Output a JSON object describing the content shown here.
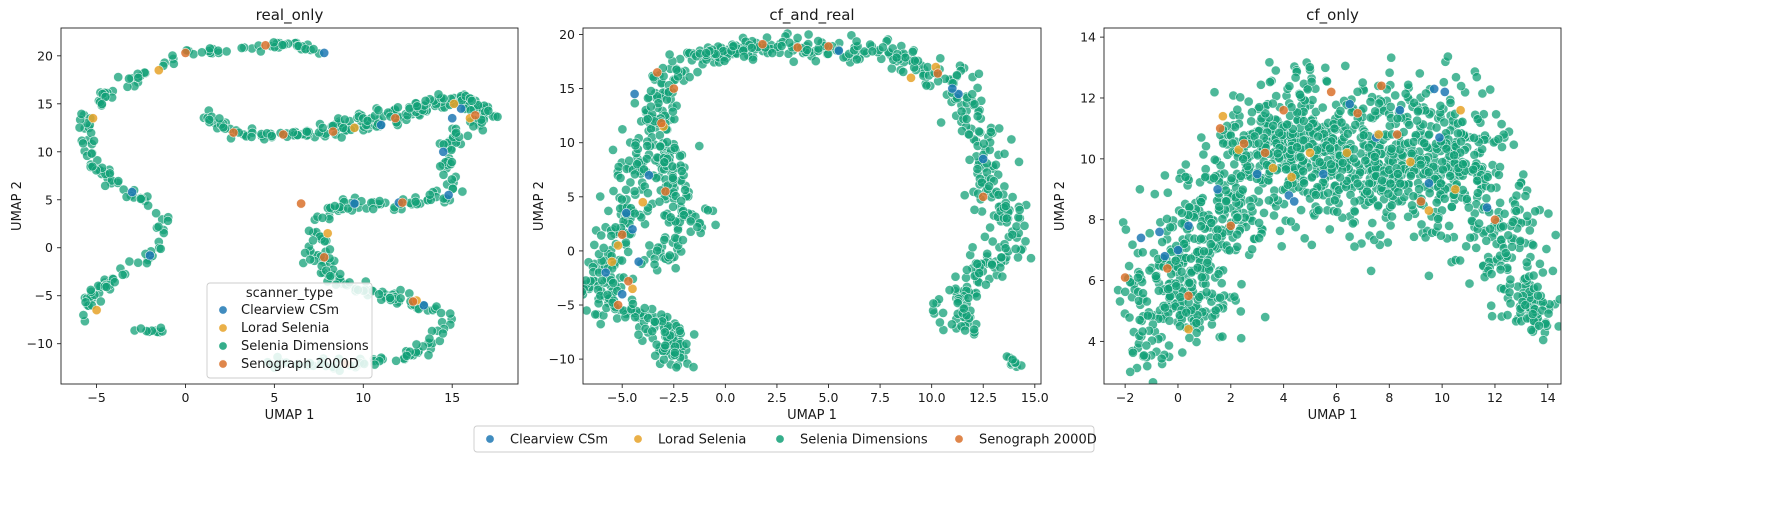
{
  "colors": {
    "Clearview CSm": "#1f78b4",
    "Lorad Selenia": "#e6a228",
    "Selenia Dimensions": "#12a077",
    "Senograph 2000D": "#d9712b"
  },
  "bottom_legend": {
    "entries": [
      "Clearview CSm",
      "Lorad Selenia",
      "Selenia Dimensions",
      "Senograph 2000D"
    ]
  },
  "chart_data": [
    {
      "type": "scatter",
      "title": "real_only",
      "xlabel": "UMAP 1",
      "ylabel": "UMAP 2",
      "xlim": [
        -7,
        18.7
      ],
      "ylim": [
        -14.2,
        22.9
      ],
      "xticks": [
        -5,
        0,
        5,
        10,
        15
      ],
      "yticks": [
        -10,
        -5,
        0,
        5,
        10,
        15,
        20
      ],
      "legend": {
        "title": "scanner_type",
        "placement": "lower-center",
        "entries": [
          "Clearview CSm",
          "Lorad Selenia",
          "Selenia Dimensions",
          "Senograph 2000D"
        ]
      },
      "curves": [
        {
          "points": [
            [
              4.9,
              21.1
            ],
            [
              3,
              20.8
            ],
            [
              1,
              20.4
            ],
            [
              -0.5,
              19.8
            ],
            [
              -1.5,
              18.8
            ],
            [
              -3,
              17.5
            ],
            [
              -4.5,
              15.8
            ],
            [
              -5.6,
              13.5
            ],
            [
              -5.6,
              10.5
            ],
            [
              -5,
              8
            ],
            [
              -3.5,
              6.2
            ],
            [
              -2,
              4.5
            ],
            [
              -1.2,
              2.5
            ],
            [
              -1.4,
              0.3
            ],
            [
              -2.5,
              -1.5
            ],
            [
              -4,
              -3.3
            ],
            [
              -5.2,
              -5
            ],
            [
              -5.5,
              -6.5
            ],
            [
              -5,
              -7.8
            ]
          ],
          "spread": 0.25,
          "count": 150
        },
        {
          "points": [
            [
              4.9,
              21.1
            ],
            [
              6,
              21.1
            ],
            [
              7,
              20.9
            ],
            [
              7.3,
              20.2
            ]
          ],
          "spread": 0.2,
          "count": 20
        },
        {
          "points": [
            [
              -3,
              -8.5
            ],
            [
              -2,
              -8.7
            ],
            [
              -1,
              -8.5
            ]
          ],
          "spread": 0.15,
          "count": 10
        },
        {
          "points": [
            [
              1.3,
              13.9
            ],
            [
              1.8,
              12.8
            ],
            [
              3,
              12
            ],
            [
              5.5,
              11.8
            ],
            [
              8,
              12
            ],
            [
              10,
              12.6
            ],
            [
              11.5,
              13.4
            ],
            [
              13,
              14.2
            ],
            [
              14,
              15
            ],
            [
              15,
              15.3
            ],
            [
              16,
              15
            ],
            [
              17,
              14.3
            ]
          ],
          "spread": 0.3,
          "count": 120
        },
        {
          "points": [
            [
              5.5,
              11.8
            ],
            [
              7.5,
              12.3
            ],
            [
              10.5,
              13.6
            ],
            [
              13,
              15.2
            ],
            [
              15.5,
              15.6
            ],
            [
              16.5,
              14.8
            ],
            [
              17.2,
              13.5
            ],
            [
              16.5,
              12.7
            ],
            [
              15.5,
              12
            ],
            [
              15,
              11
            ],
            [
              14.7,
              9
            ],
            [
              15,
              7
            ],
            [
              14.8,
              5.5
            ],
            [
              13,
              4.8
            ],
            [
              11,
              4.6
            ],
            [
              9,
              4.5
            ],
            [
              8,
              3.5
            ],
            [
              7.6,
              1.5
            ],
            [
              7.5,
              0
            ],
            [
              7.8,
              -2
            ],
            [
              8.5,
              -3.5
            ],
            [
              10,
              -4.5
            ],
            [
              12,
              -5
            ],
            [
              13.5,
              -5.8
            ],
            [
              14.3,
              -7
            ],
            [
              14.5,
              -8.5
            ],
            [
              14,
              -10
            ],
            [
              13,
              -11
            ],
            [
              11,
              -11.8
            ],
            [
              8.5,
              -12.1
            ],
            [
              6,
              -12.2
            ],
            [
              5,
              -12
            ]
          ],
          "spread": 0.35,
          "count": 330
        }
      ],
      "highlights": [
        {
          "scanner": "Clearview CSm",
          "points": [
            [
              -3,
              5.8
            ],
            [
              -2,
              -0.8
            ],
            [
              12,
              4.7
            ],
            [
              15,
              13.5
            ],
            [
              7.8,
              20.3
            ],
            [
              14.5,
              10
            ],
            [
              14.8,
              5.5
            ],
            [
              9.5,
              4.6
            ],
            [
              15.5,
              14.5
            ],
            [
              13.4,
              -6
            ],
            [
              11,
              12.8
            ]
          ]
        },
        {
          "scanner": "Lorad Selenia",
          "points": [
            [
              -1.5,
              18.5
            ],
            [
              -5.2,
              13.5
            ],
            [
              9.5,
              12.5
            ],
            [
              13,
              -5.5
            ],
            [
              16,
              13.5
            ],
            [
              -5,
              -6.5
            ],
            [
              15.1,
              15
            ],
            [
              8,
              1.5
            ]
          ]
        },
        {
          "scanner": "Senograph 2000D",
          "points": [
            [
              2.7,
              12
            ],
            [
              5.5,
              11.8
            ],
            [
              8.3,
              12.1
            ],
            [
              12.8,
              -5.6
            ],
            [
              16.3,
              13.8
            ],
            [
              12.2,
              4.7
            ],
            [
              0,
              20.3
            ],
            [
              4.5,
              21.1
            ],
            [
              6.5,
              4.6
            ],
            [
              9,
              -12.1
            ],
            [
              7.8,
              -1
            ],
            [
              11.8,
              13.5
            ]
          ]
        }
      ]
    },
    {
      "type": "scatter",
      "title": "cf_and_real",
      "xlabel": "UMAP 1",
      "ylabel": "UMAP 2",
      "xlim": [
        -6.9,
        15.3
      ],
      "ylim": [
        -12.3,
        20.6
      ],
      "xticks": [
        -5.0,
        -2.5,
        0.0,
        2.5,
        5.0,
        7.5,
        10.0,
        12.5,
        15.0
      ],
      "yticks": [
        -10,
        -5,
        0,
        5,
        10,
        15,
        20
      ],
      "curves": [
        {
          "points": [
            [
              -5.8,
              -6
            ],
            [
              -6,
              -3
            ],
            [
              -5.5,
              0
            ],
            [
              -4.8,
              3
            ],
            [
              -4.5,
              6
            ],
            [
              -4,
              9
            ],
            [
              -3.5,
              12
            ],
            [
              -3.2,
              14.5
            ],
            [
              -2.5,
              16.8
            ],
            [
              -1,
              18
            ],
            [
              1,
              18.7
            ],
            [
              3,
              18.9
            ],
            [
              5,
              18.9
            ],
            [
              7,
              18.6
            ],
            [
              9,
              17.6
            ],
            [
              10.5,
              16.3
            ],
            [
              11.2,
              14.5
            ],
            [
              11.8,
              12.5
            ],
            [
              12.5,
              10
            ],
            [
              12.7,
              7
            ],
            [
              13.3,
              4
            ],
            [
              14,
              1.5
            ],
            [
              13.5,
              -0.5
            ],
            [
              12.2,
              -2
            ],
            [
              11.5,
              -4
            ],
            [
              11.2,
              -6
            ],
            [
              11.5,
              -8
            ]
          ],
          "spread": 0.55,
          "count": 640
        },
        {
          "points": [
            [
              -5,
              -5
            ],
            [
              -4,
              -6
            ],
            [
              -3,
              -7
            ],
            [
              -2.5,
              -9
            ],
            [
              -2.6,
              -10.2
            ]
          ],
          "spread": 0.5,
          "count": 110
        },
        {
          "points": [
            [
              -3.5,
              -1.5
            ],
            [
              -3,
              0
            ],
            [
              -2.5,
              2
            ],
            [
              -2.2,
              4
            ],
            [
              -2.5,
              6
            ],
            [
              -2.8,
              8
            ],
            [
              -2.6,
              10
            ]
          ],
          "spread": 0.5,
          "count": 110
        },
        {
          "points": [
            [
              -2.2,
              0.5
            ],
            [
              -1.5,
              1.8
            ],
            [
              -1.2,
              3
            ],
            [
              -0.8,
              3.9
            ]
          ],
          "spread": 0.3,
          "count": 15
        },
        {
          "points": [
            [
              13.4,
              -9.5
            ],
            [
              13.8,
              -10
            ],
            [
              14.2,
              -10.7
            ]
          ],
          "spread": 0.15,
          "count": 10
        },
        {
          "points": [
            [
              -1.2,
              18.2
            ],
            [
              0,
              18.5
            ],
            [
              1,
              18.6
            ]
          ],
          "spread": 0.3,
          "count": 30
        }
      ],
      "highlights": [
        {
          "scanner": "Clearview CSm",
          "points": [
            [
              -4.4,
              14.5
            ],
            [
              -5.8,
              -2
            ],
            [
              -4.8,
              3.5
            ],
            [
              -4.2,
              -1
            ],
            [
              -3.7,
              7
            ],
            [
              11.3,
              14.5
            ],
            [
              12.5,
              8.5
            ],
            [
              5.5,
              18.5
            ],
            [
              -5,
              -4
            ],
            [
              -4.5,
              2
            ],
            [
              11,
              15
            ]
          ]
        },
        {
          "scanner": "Lorad Selenia",
          "points": [
            [
              -5.2,
              0.5
            ],
            [
              -4.5,
              -3.5
            ],
            [
              -4,
              4.5
            ],
            [
              9,
              16
            ],
            [
              -3,
              11.5
            ],
            [
              -5.5,
              -1
            ],
            [
              10.2,
              17
            ]
          ]
        },
        {
          "scanner": "Senograph 2000D",
          "points": [
            [
              -3.3,
              16.5
            ],
            [
              -3.1,
              11.8
            ],
            [
              1.8,
              19.1
            ],
            [
              3.5,
              18.8
            ],
            [
              5,
              18.9
            ],
            [
              10.3,
              16.4
            ],
            [
              -5.2,
              -5
            ],
            [
              -4.7,
              -2.8
            ],
            [
              -2.9,
              5.5
            ],
            [
              -5,
              1.5
            ],
            [
              12.5,
              5
            ],
            [
              -2.5,
              15
            ]
          ]
        }
      ]
    },
    {
      "type": "scatter",
      "title": "cf_only",
      "xlabel": "UMAP 1",
      "ylabel": "UMAP 2",
      "xlim": [
        -2.8,
        14.5
      ],
      "ylim": [
        2.6,
        14.3
      ],
      "xticks": [
        -2,
        0,
        2,
        4,
        6,
        8,
        10,
        12,
        14
      ],
      "yticks": [
        4,
        6,
        8,
        10,
        12,
        14
      ],
      "blobs": [
        {
          "cx": 0,
          "cy": 5.8,
          "sx": 1.0,
          "sy": 1.0,
          "count": 220
        },
        {
          "cx": 1.5,
          "cy": 8.2,
          "sx": 1.0,
          "sy": 0.9,
          "count": 160
        },
        {
          "cx": 4,
          "cy": 10.2,
          "sx": 1.3,
          "sy": 0.9,
          "count": 330
        },
        {
          "cx": 7,
          "cy": 10,
          "sx": 1.3,
          "sy": 1.2,
          "count": 300
        },
        {
          "cx": 10,
          "cy": 9.8,
          "sx": 1.2,
          "sy": 1.3,
          "count": 320
        },
        {
          "cx": 12.5,
          "cy": 7,
          "sx": 0.7,
          "sy": 1.0,
          "count": 110
        },
        {
          "cx": 13.5,
          "cy": 5.2,
          "sx": 0.4,
          "sy": 0.5,
          "count": 60
        },
        {
          "cx": 4.8,
          "cy": 12.3,
          "sx": 0.5,
          "sy": 0.5,
          "count": 25
        },
        {
          "cx": -1.2,
          "cy": 4,
          "sx": 0.4,
          "sy": 0.6,
          "count": 30
        }
      ],
      "highlights": [
        {
          "scanner": "Clearview CSm",
          "points": [
            [
              -1.4,
              7.4
            ],
            [
              -0.7,
              7.6
            ],
            [
              0,
              7
            ],
            [
              4.2,
              8.8
            ],
            [
              4.4,
              8.6
            ],
            [
              9.7,
              12.3
            ],
            [
              10.1,
              12.2
            ],
            [
              8.4,
              11.6
            ],
            [
              9.9,
              10.7
            ],
            [
              7.5,
              10.7
            ],
            [
              0.4,
              7.8
            ],
            [
              -0.5,
              6.8
            ],
            [
              3,
              9.5
            ],
            [
              11.7,
              8.4
            ],
            [
              9.5,
              9.2
            ],
            [
              6.5,
              11.8
            ],
            [
              5.5,
              9.5
            ],
            [
              1.5,
              9
            ]
          ]
        },
        {
          "scanner": "Lorad Selenia",
          "points": [
            [
              3.6,
              9.7
            ],
            [
              7.6,
              10.8
            ],
            [
              10.7,
              11.6
            ],
            [
              8.8,
              9.9
            ],
            [
              0.4,
              4.4
            ],
            [
              2.3,
              10.3
            ],
            [
              4.3,
              9.4
            ],
            [
              9.5,
              8.3
            ],
            [
              6.4,
              10.2
            ],
            [
              1.7,
              11.4
            ],
            [
              10.5,
              9
            ],
            [
              5,
              10.2
            ]
          ]
        },
        {
          "scanner": "Senograph 2000D",
          "points": [
            [
              1.6,
              11
            ],
            [
              2.5,
              10.5
            ],
            [
              -2,
              6.1
            ],
            [
              6.8,
              11.5
            ],
            [
              7.7,
              12.4
            ],
            [
              0.4,
              5.5
            ],
            [
              -0.4,
              6.4
            ],
            [
              4,
              11.6
            ],
            [
              8.3,
              10.8
            ],
            [
              12,
              8
            ],
            [
              9.2,
              8.6
            ],
            [
              3.3,
              10.2
            ],
            [
              5.8,
              12.2
            ],
            [
              2,
              7.8
            ]
          ]
        }
      ]
    }
  ]
}
